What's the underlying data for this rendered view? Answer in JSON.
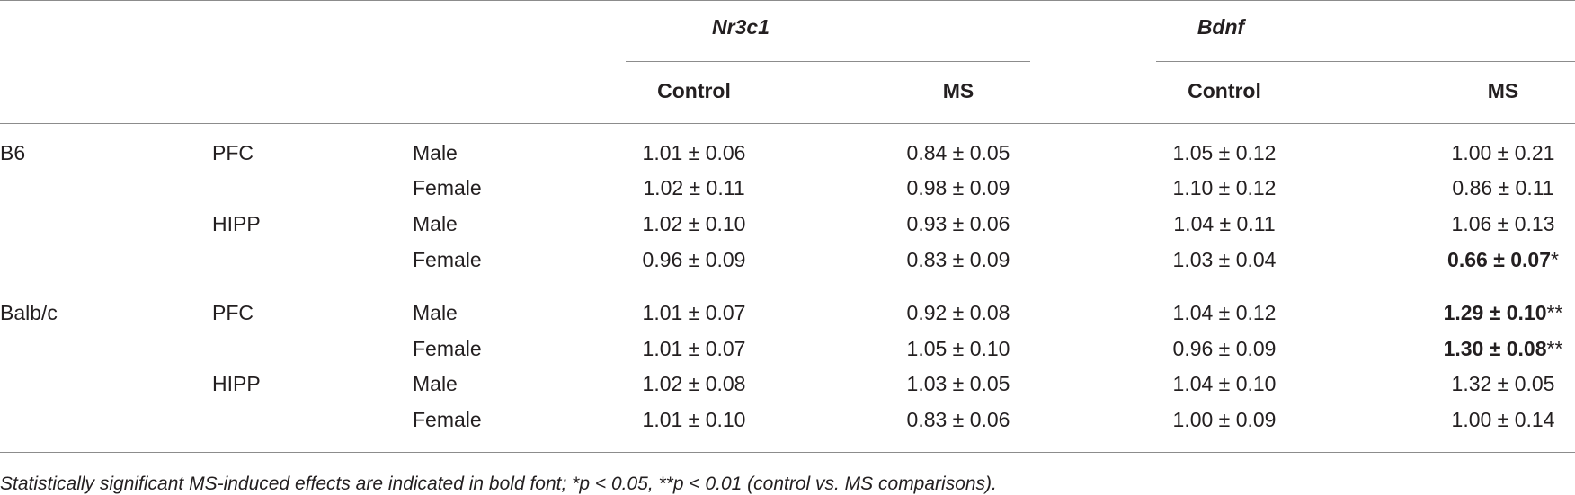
{
  "table": {
    "gene_headers": [
      "Nr3c1",
      "Bdnf"
    ],
    "col_headers": [
      "Control",
      "MS",
      "Control",
      "MS"
    ],
    "rows": [
      {
        "strain": "B6",
        "region": "PFC",
        "sex": "Male",
        "values": [
          "1.01 ± 0.06",
          "0.84 ± 0.05",
          "1.05 ± 0.12",
          "1.00 ± 0.21"
        ]
      },
      {
        "strain": "",
        "region": "",
        "sex": "Female",
        "values": [
          "1.02 ± 0.11",
          "0.98 ± 0.09",
          "1.10 ± 0.12",
          "0.86 ± 0.11"
        ]
      },
      {
        "strain": "",
        "region": "HIPP",
        "sex": "Male",
        "values": [
          "1.02 ± 0.10",
          "0.93 ± 0.06",
          "1.04 ± 0.11",
          "1.06 ± 0.13"
        ]
      },
      {
        "strain": "",
        "region": "",
        "sex": "Female",
        "values": [
          "0.96 ± 0.09",
          "0.83 ± 0.09",
          "1.03 ± 0.04",
          "0.66 ± 0.07"
        ],
        "mark": "*"
      },
      {
        "strain": "Balb/c",
        "region": "PFC",
        "sex": "Male",
        "values": [
          "1.01 ± 0.07",
          "0.92 ± 0.08",
          "1.04 ± 0.12",
          "1.29 ± 0.10"
        ],
        "mark": "**"
      },
      {
        "strain": "",
        "region": "",
        "sex": "Female",
        "values": [
          "1.01 ± 0.07",
          "1.05 ± 0.10",
          "0.96 ± 0.09",
          "1.30 ± 0.08"
        ],
        "mark": "**"
      },
      {
        "strain": "",
        "region": "HIPP",
        "sex": "Male",
        "values": [
          "1.02 ± 0.08",
          "1.03 ± 0.05",
          "1.04 ± 0.10",
          "1.32 ± 0.05"
        ]
      },
      {
        "strain": "",
        "region": "",
        "sex": "Female",
        "values": [
          "1.01 ± 0.10",
          "0.83 ± 0.06",
          "1.00 ± 0.09",
          "1.00 ± 0.14"
        ]
      }
    ],
    "footnote": "Statistically significant MS-induced effects are indicated in bold font; *p < 0.05, **p < 0.01 (control vs. MS comparisons)."
  }
}
